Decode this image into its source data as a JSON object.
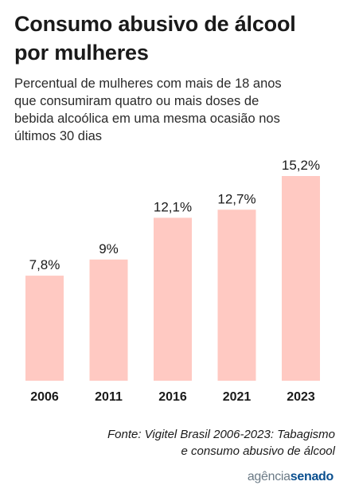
{
  "chart_data": {
    "type": "bar",
    "title": "Consumo abusivo de álcool por mulheres",
    "subtitle": "Percentual de mulheres com mais de 18 anos que consumiram quatro ou mais doses de bebida alcoólica em uma mesma ocasião nos últimos 30 dias",
    "categories": [
      "2006",
      "2011",
      "2016",
      "2021",
      "2023"
    ],
    "values": [
      7.8,
      9,
      12.1,
      12.7,
      15.2
    ],
    "value_labels": [
      "7,8%",
      "9%",
      "12,1%",
      "12,7%",
      "15,2%"
    ],
    "ylim": [
      0,
      15.2
    ],
    "bar_color": "#ffc9c2",
    "grid": false,
    "legend": "none"
  },
  "source": {
    "line1": "Fonte: Vigitel Brasil 2006-2023: Tabagismo",
    "line2": "e consumo abusivo de álcool"
  },
  "logo": {
    "part1": "agência",
    "part2": "senado"
  }
}
